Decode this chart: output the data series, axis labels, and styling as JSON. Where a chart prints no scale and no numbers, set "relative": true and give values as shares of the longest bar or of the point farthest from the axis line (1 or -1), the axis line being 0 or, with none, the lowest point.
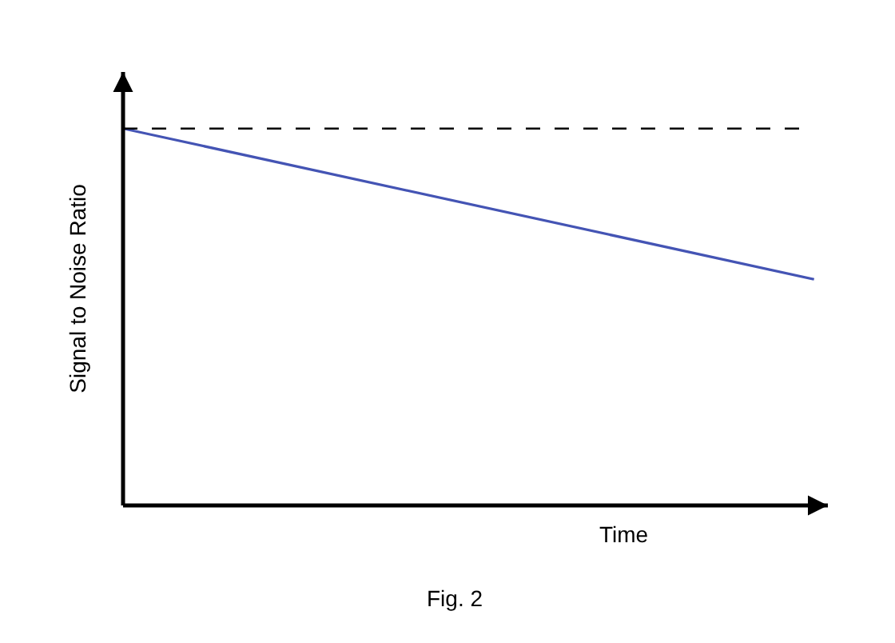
{
  "chart_data": {
    "type": "line",
    "relative": true,
    "categories": [
      null,
      null
    ],
    "series": [
      {
        "color": "#4454b4",
        "values": [
          1,
          0.6
        ]
      }
    ],
    "ref_lines": [
      {
        "axis": "y",
        "value": 1.0,
        "color": "#000000",
        "line_style": "dashed"
      }
    ],
    "xlabel": "Time",
    "ylabel": "Signal to Noise Ratio",
    "annotations": [
      "Fig. 2"
    ],
    "marker": "none",
    "line_style": "solid"
  }
}
